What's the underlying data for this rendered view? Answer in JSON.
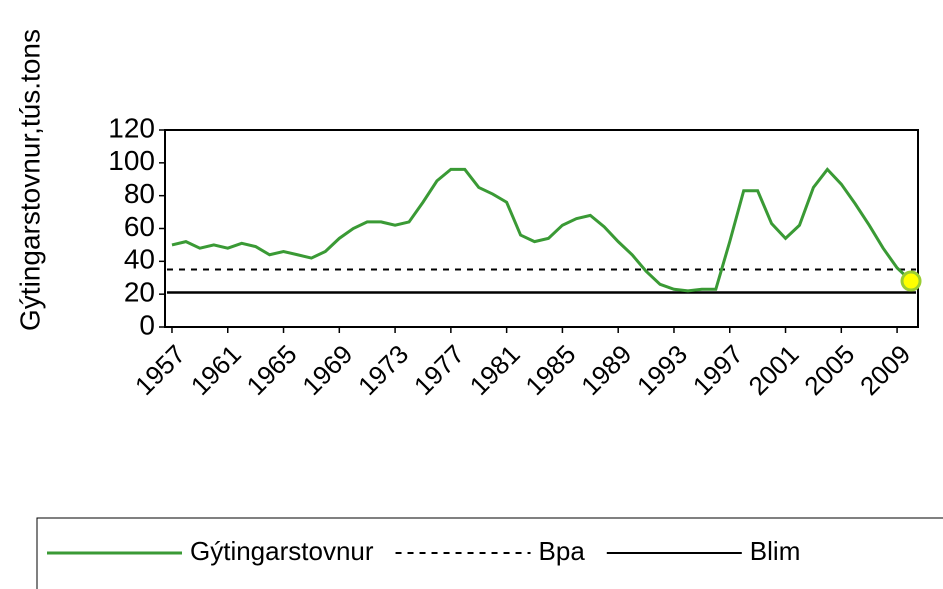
{
  "chart_data": {
    "type": "line",
    "y_label": "Gýtingarstovnur,tús.tons",
    "categories": [
      "1957",
      null,
      null,
      null,
      "1961",
      null,
      null,
      null,
      "1965",
      null,
      null,
      null,
      "1969",
      null,
      null,
      null,
      "1973",
      null,
      null,
      null,
      "1977",
      null,
      null,
      null,
      "1981",
      null,
      null,
      null,
      "1985",
      null,
      null,
      null,
      "1989",
      null,
      null,
      null,
      "1993",
      null,
      null,
      null,
      "1997",
      null,
      null,
      null,
      "2001",
      null,
      null,
      null,
      "2005",
      null,
      null,
      null,
      "2009",
      null
    ],
    "series": [
      {
        "name": "Gýtingarstovnur",
        "color": "#3a9a35",
        "values": [
          50,
          52,
          48,
          50,
          48,
          51,
          49,
          44,
          46,
          44,
          42,
          46,
          54,
          60,
          64,
          64,
          62,
          64,
          76,
          89,
          96,
          96,
          85,
          81,
          76,
          56,
          52,
          54,
          62,
          66,
          68,
          61,
          52,
          44,
          34,
          26,
          23,
          22,
          23,
          23,
          52,
          83,
          83,
          63,
          54,
          62,
          85,
          96,
          87,
          75,
          62,
          48,
          36,
          28
        ]
      }
    ],
    "reference_lines": [
      {
        "name": "Bpa",
        "value": 35,
        "color": "#000000",
        "style": "dashed"
      },
      {
        "name": "Blim",
        "value": 21,
        "color": "#000000",
        "style": "solid"
      }
    ],
    "highlight_last": {
      "color": "#ffff00",
      "stroke": "#9acd32"
    },
    "ylim": [
      0,
      120
    ],
    "yticks": [
      0,
      20,
      40,
      60,
      80,
      100,
      120
    ]
  }
}
